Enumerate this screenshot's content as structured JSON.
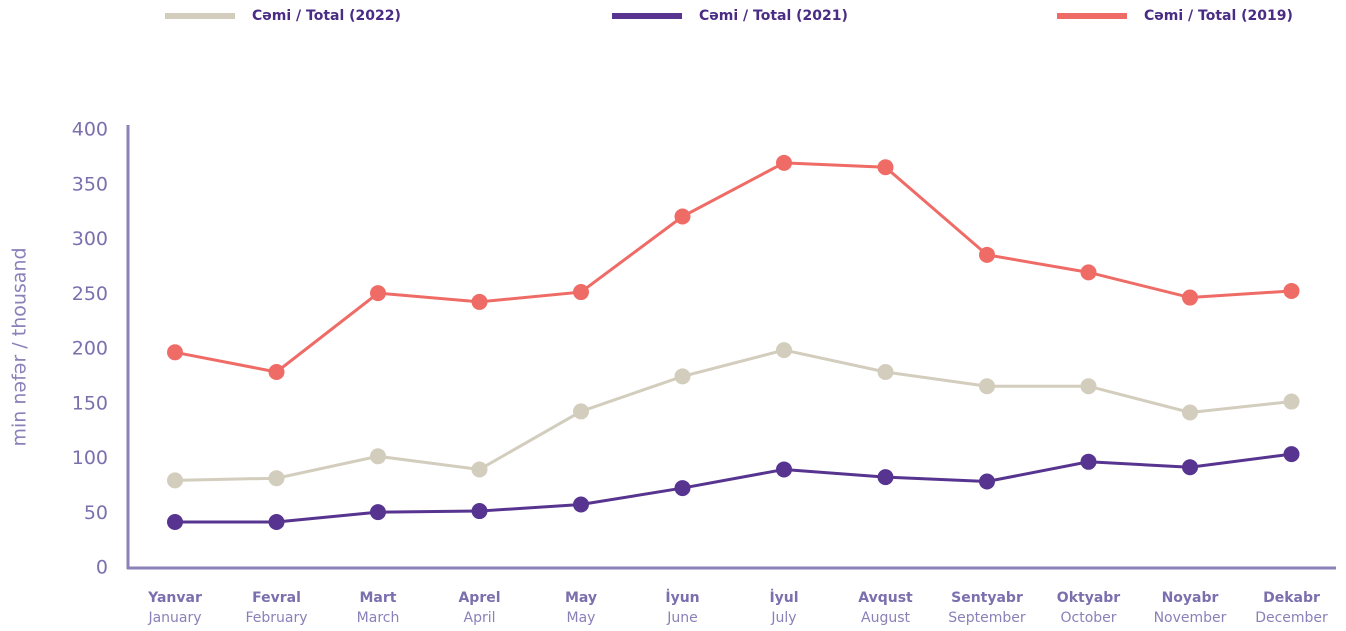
{
  "chart_data": {
    "type": "line",
    "ylabel": "min nəfər / thousand",
    "categories": [
      [
        "Yanvar",
        "January"
      ],
      [
        "Fevral",
        "February"
      ],
      [
        "Mart",
        "March"
      ],
      [
        "Aprel",
        "April"
      ],
      [
        "May",
        "May"
      ],
      [
        "İyun",
        "June"
      ],
      [
        "İyul",
        "July"
      ],
      [
        "Avqust",
        "August"
      ],
      [
        "Sentyabr",
        "September"
      ],
      [
        "Oktyabr",
        "October"
      ],
      [
        "Noyabr",
        "November"
      ],
      [
        "Dekabr",
        "December"
      ]
    ],
    "series": [
      {
        "name": "Cəmi / Total (2022)",
        "color": "#d3cdbd",
        "values": [
          80,
          82,
          102,
          90,
          143,
          175,
          199,
          179,
          166,
          166,
          142,
          152
        ]
      },
      {
        "name": "Cəmi / Total (2021)",
        "color": "#56348f",
        "values": [
          42,
          42,
          51,
          52,
          58,
          73,
          90,
          83,
          79,
          97,
          92,
          104
        ]
      },
      {
        "name": "Cəmi / Total (2019)",
        "color": "#ef6b66",
        "values": [
          197,
          179,
          251,
          243,
          252,
          321,
          370,
          366,
          286,
          270,
          247,
          253
        ]
      }
    ],
    "ylim": [
      0,
      400
    ],
    "yticks": [
      0,
      50,
      100,
      150,
      200,
      250,
      300,
      350,
      400
    ]
  }
}
